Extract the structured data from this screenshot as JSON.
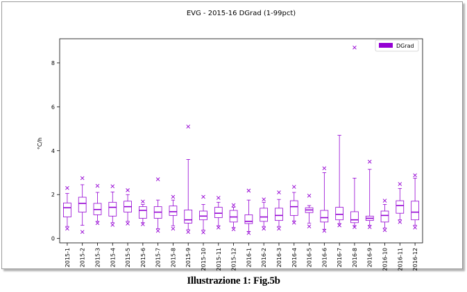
{
  "chart_data": {
    "type": "boxplot",
    "title": "EVG - 2015-16 DGrad (1-99pct)",
    "xlabel": "",
    "ylabel": "°C/h",
    "ylim": [
      -0.2,
      9.1
    ],
    "yticks": [
      0,
      2,
      4,
      6,
      8
    ],
    "legend": {
      "label": "DGrad",
      "position": "top-right"
    },
    "series_color": "#9400d3",
    "categories": [
      "2015-1",
      "2015-2",
      "2015-3",
      "2015-4",
      "2015-5",
      "2015-6",
      "2015-7",
      "2015-8",
      "2015-9",
      "2015-10",
      "2015-11",
      "2015-12",
      "2016-1",
      "2016-2",
      "2016-3",
      "2016-4",
      "2016-5",
      "2016-6",
      "2016-7",
      "2016-8",
      "2016-9",
      "2016-10",
      "2016-11",
      "2016-12"
    ],
    "boxes": [
      {
        "whislo": 0.55,
        "q1": 0.98,
        "med": 1.4,
        "q3": 1.62,
        "whishi": 2.05,
        "fliers": [
          0.45,
          2.3
        ]
      },
      {
        "whislo": 0.6,
        "q1": 1.2,
        "med": 1.6,
        "q3": 1.88,
        "whishi": 2.45,
        "fliers": [
          0.3,
          2.75
        ]
      },
      {
        "whislo": 0.78,
        "q1": 1.08,
        "med": 1.32,
        "q3": 1.6,
        "whishi": 2.1,
        "fliers": [
          0.7,
          2.4
        ]
      },
      {
        "whislo": 0.72,
        "q1": 1.02,
        "med": 1.42,
        "q3": 1.65,
        "whishi": 2.12,
        "fliers": [
          0.62,
          2.38
        ]
      },
      {
        "whislo": 0.78,
        "q1": 1.2,
        "med": 1.45,
        "q3": 1.7,
        "whishi": 2.0,
        "fliers": [
          0.68,
          2.2
        ]
      },
      {
        "whislo": 0.72,
        "q1": 0.92,
        "med": 1.28,
        "q3": 1.45,
        "whishi": 1.55,
        "fliers": [
          0.65,
          1.68
        ]
      },
      {
        "whislo": 0.45,
        "q1": 0.92,
        "med": 1.2,
        "q3": 1.45,
        "whishi": 1.75,
        "fliers": [
          0.35,
          2.7
        ]
      },
      {
        "whislo": 0.58,
        "q1": 1.05,
        "med": 1.22,
        "q3": 1.48,
        "whishi": 1.75,
        "fliers": [
          0.45,
          1.9
        ]
      },
      {
        "whislo": 0.4,
        "q1": 0.7,
        "med": 0.85,
        "q3": 1.3,
        "whishi": 3.6,
        "fliers": [
          0.3,
          5.1
        ]
      },
      {
        "whislo": 0.38,
        "q1": 0.85,
        "med": 1.02,
        "q3": 1.25,
        "whishi": 1.55,
        "fliers": [
          0.28,
          1.9
        ]
      },
      {
        "whislo": 0.58,
        "q1": 0.95,
        "med": 1.15,
        "q3": 1.42,
        "whishi": 1.65,
        "fliers": [
          0.5,
          1.85
        ]
      },
      {
        "whislo": 0.5,
        "q1": 0.75,
        "med": 0.98,
        "q3": 1.28,
        "whishi": 1.42,
        "fliers": [
          0.42,
          1.52
        ]
      },
      {
        "whislo": 0.32,
        "q1": 0.68,
        "med": 0.78,
        "q3": 1.08,
        "whishi": 1.75,
        "fliers": [
          0.25,
          2.18
        ]
      },
      {
        "whislo": 0.55,
        "q1": 0.78,
        "med": 0.98,
        "q3": 1.38,
        "whishi": 1.65,
        "fliers": [
          0.45,
          1.78
        ]
      },
      {
        "whislo": 0.55,
        "q1": 0.82,
        "med": 1.05,
        "q3": 1.38,
        "whishi": 1.78,
        "fliers": [
          0.45,
          2.1
        ]
      },
      {
        "whislo": 0.8,
        "q1": 1.05,
        "med": 1.45,
        "q3": 1.72,
        "whishi": 2.1,
        "fliers": [
          0.72,
          2.35
        ]
      },
      {
        "whislo": 0.7,
        "q1": 1.18,
        "med": 1.3,
        "q3": 1.4,
        "whishi": 1.5,
        "fliers": [
          0.55,
          1.95
        ]
      },
      {
        "whislo": 0.42,
        "q1": 0.75,
        "med": 0.95,
        "q3": 1.28,
        "whishi": 3.0,
        "fliers": [
          0.35,
          3.2
        ]
      },
      {
        "whislo": 0.68,
        "q1": 0.85,
        "med": 1.1,
        "q3": 1.42,
        "whishi": 4.7,
        "fliers": [
          0.6
        ]
      },
      {
        "whislo": 0.58,
        "q1": 0.72,
        "med": 0.85,
        "q3": 1.22,
        "whishi": 2.75,
        "fliers": [
          0.52,
          8.7
        ]
      },
      {
        "whislo": 0.6,
        "q1": 0.82,
        "med": 0.92,
        "q3": 1.02,
        "whishi": 3.15,
        "fliers": [
          0.52,
          3.5
        ]
      },
      {
        "whislo": 0.48,
        "q1": 0.75,
        "med": 1.05,
        "q3": 1.25,
        "whishi": 1.55,
        "fliers": [
          0.38,
          1.72
        ]
      },
      {
        "whislo": 0.85,
        "q1": 1.15,
        "med": 1.5,
        "q3": 1.72,
        "whishi": 2.28,
        "fliers": [
          0.75,
          2.48
        ]
      },
      {
        "whislo": 0.6,
        "q1": 0.85,
        "med": 1.2,
        "q3": 1.7,
        "whishi": 2.75,
        "fliers": [
          0.5,
          2.88
        ]
      }
    ]
  },
  "caption": "Illustrazione 1: Fig.5b"
}
